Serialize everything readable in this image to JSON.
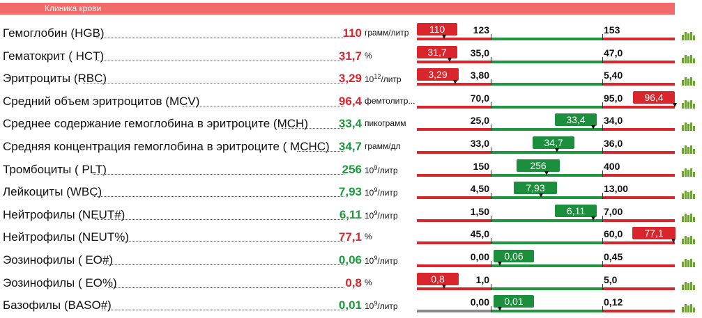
{
  "header": {
    "title": "Клиника крови"
  },
  "rows": [
    {
      "name": "Гемоглобин (HGB)",
      "value": "110",
      "unit": "грамм/литр",
      "low": "123",
      "high": "153",
      "badge": "110",
      "status": "low"
    },
    {
      "name": "Гематокрит ( HCT)",
      "value": "31,7",
      "unit": "%",
      "low": "35,0",
      "high": "47,0",
      "badge": "31,7",
      "status": "low"
    },
    {
      "name": "Эритроциты (RBC)",
      "value": "3,29",
      "unit_base": "10",
      "unit_exp": "12",
      "unit_tail": "/литр",
      "low": "3,80",
      "high": "5,40",
      "badge": "3,29",
      "status": "low"
    },
    {
      "name": "Средний объем эритроцитов (MCV)",
      "value": "96,4",
      "unit": "фемтолитр...",
      "low": "70,0",
      "high": "95,0",
      "badge": "96,4",
      "status": "high"
    },
    {
      "name": "Среднее содержание гемоглобина в эритроците (MCH)",
      "value": "33,4",
      "unit": "пикограмм",
      "low": "25,0",
      "high": "34,0",
      "badge": "33,4",
      "status": "normal"
    },
    {
      "name": "Средняя концентрация гемоглобина в эритроците ( MCHC)",
      "value": "34,7",
      "unit": "грамм/дл",
      "low": "33,0",
      "high": "36,0",
      "badge": "34,7",
      "status": "normal"
    },
    {
      "name": "Тромбоциты ( PLT)",
      "value": "256",
      "unit_base": "10",
      "unit_exp": "9",
      "unit_tail": "/литр",
      "low": "150",
      "high": "400",
      "badge": "256",
      "status": "normal"
    },
    {
      "name": "Лейкоциты (WBC)",
      "value": "7,93",
      "unit_base": "10",
      "unit_exp": "9",
      "unit_tail": "/литр",
      "low": "4,50",
      "high": "13,00",
      "badge": "7,93",
      "status": "normal"
    },
    {
      "name": "Нейтрофилы (NEUT#)",
      "value": "6,11",
      "unit_base": "10",
      "unit_exp": "9",
      "unit_tail": "/литр",
      "low": "1,50",
      "high": "7,00",
      "badge": "6,11",
      "status": "normal"
    },
    {
      "name": "Нейтрофилы (NEUT%)",
      "value": "77,1",
      "unit": "%",
      "low": "45,0",
      "high": "60,0",
      "badge": "77,1",
      "status": "high"
    },
    {
      "name": "Эозинофилы ( EO#)",
      "value": "0,06",
      "unit_base": "10",
      "unit_exp": "9",
      "unit_tail": "/литр",
      "low": "0,00",
      "high": "0,45",
      "badge": "0,06",
      "status": "normal"
    },
    {
      "name": "Эозинофилы ( EO%)",
      "value": "0,8",
      "unit": "%",
      "low": "1,0",
      "high": "5,0",
      "badge": "0,8",
      "status": "low"
    },
    {
      "name": "Базофилы (BASO#)",
      "value": "0,01",
      "unit_base": "10",
      "unit_exp": "9",
      "unit_tail": "/литр",
      "low": "0,00",
      "high": "0,12",
      "badge": "0,01",
      "status": "normal"
    }
  ],
  "colors": {
    "header": "#f26a6a",
    "out_of_range": "#d9252c",
    "in_range": "#1c9a3c",
    "neutral_bar": "#8a8a8a",
    "icon": "#6ea13a"
  },
  "icons": {
    "row_action": "bar-chart-icon"
  }
}
